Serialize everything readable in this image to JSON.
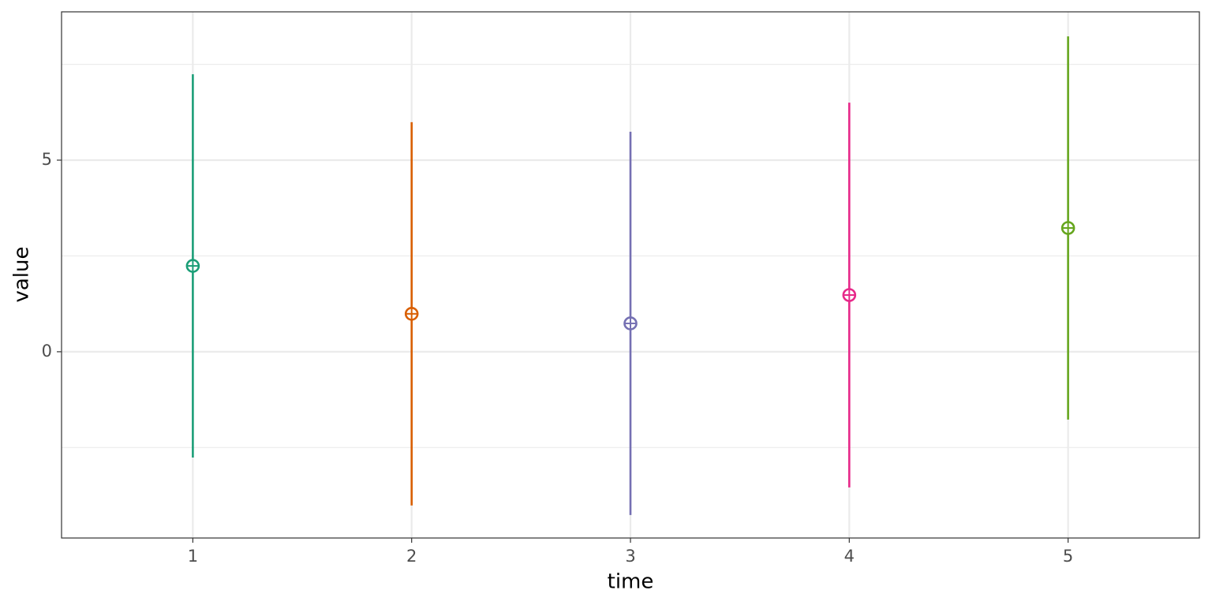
{
  "chart_data": {
    "type": "errorbar",
    "x_label": "time",
    "y_label": "value",
    "x": [
      1,
      2,
      3,
      4,
      5
    ],
    "values": [
      2.24,
      0.99,
      0.74,
      1.48,
      3.23
    ],
    "errors": [
      5.0,
      5.0,
      5.0,
      5.02,
      5.0
    ],
    "colors": [
      "#1b9e77",
      "#d95f02",
      "#7570b3",
      "#e7298a",
      "#66a61e"
    ],
    "xlim": [
      0.4,
      5.6
    ],
    "xticks": [
      1,
      2,
      3,
      4,
      5
    ],
    "ylim": [
      -4.86,
      8.87
    ],
    "yticks": [
      0,
      5
    ],
    "yminor": [
      -2.5,
      2.5,
      7.5
    ],
    "grid": true
  }
}
